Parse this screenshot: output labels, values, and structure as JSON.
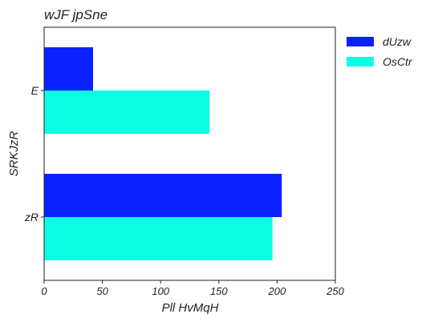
{
  "chart_data": {
    "type": "bar",
    "orientation": "horizontal",
    "title": "wJF jpSne",
    "xlabel": "Pll HvMqH",
    "ylabel": "SRKJzR",
    "categories": [
      "E",
      "zR"
    ],
    "series": [
      {
        "name": "dUzw",
        "color": "#0a22ff",
        "values": [
          42,
          204
        ]
      },
      {
        "name": "OsCtr",
        "color": "#0dfce4",
        "values": [
          142,
          196
        ]
      }
    ],
    "xlim": [
      0,
      250
    ],
    "xticks": [
      "0",
      "50",
      "100",
      "150",
      "200",
      "250"
    ],
    "grid": false,
    "legend_position": "outside-right"
  }
}
